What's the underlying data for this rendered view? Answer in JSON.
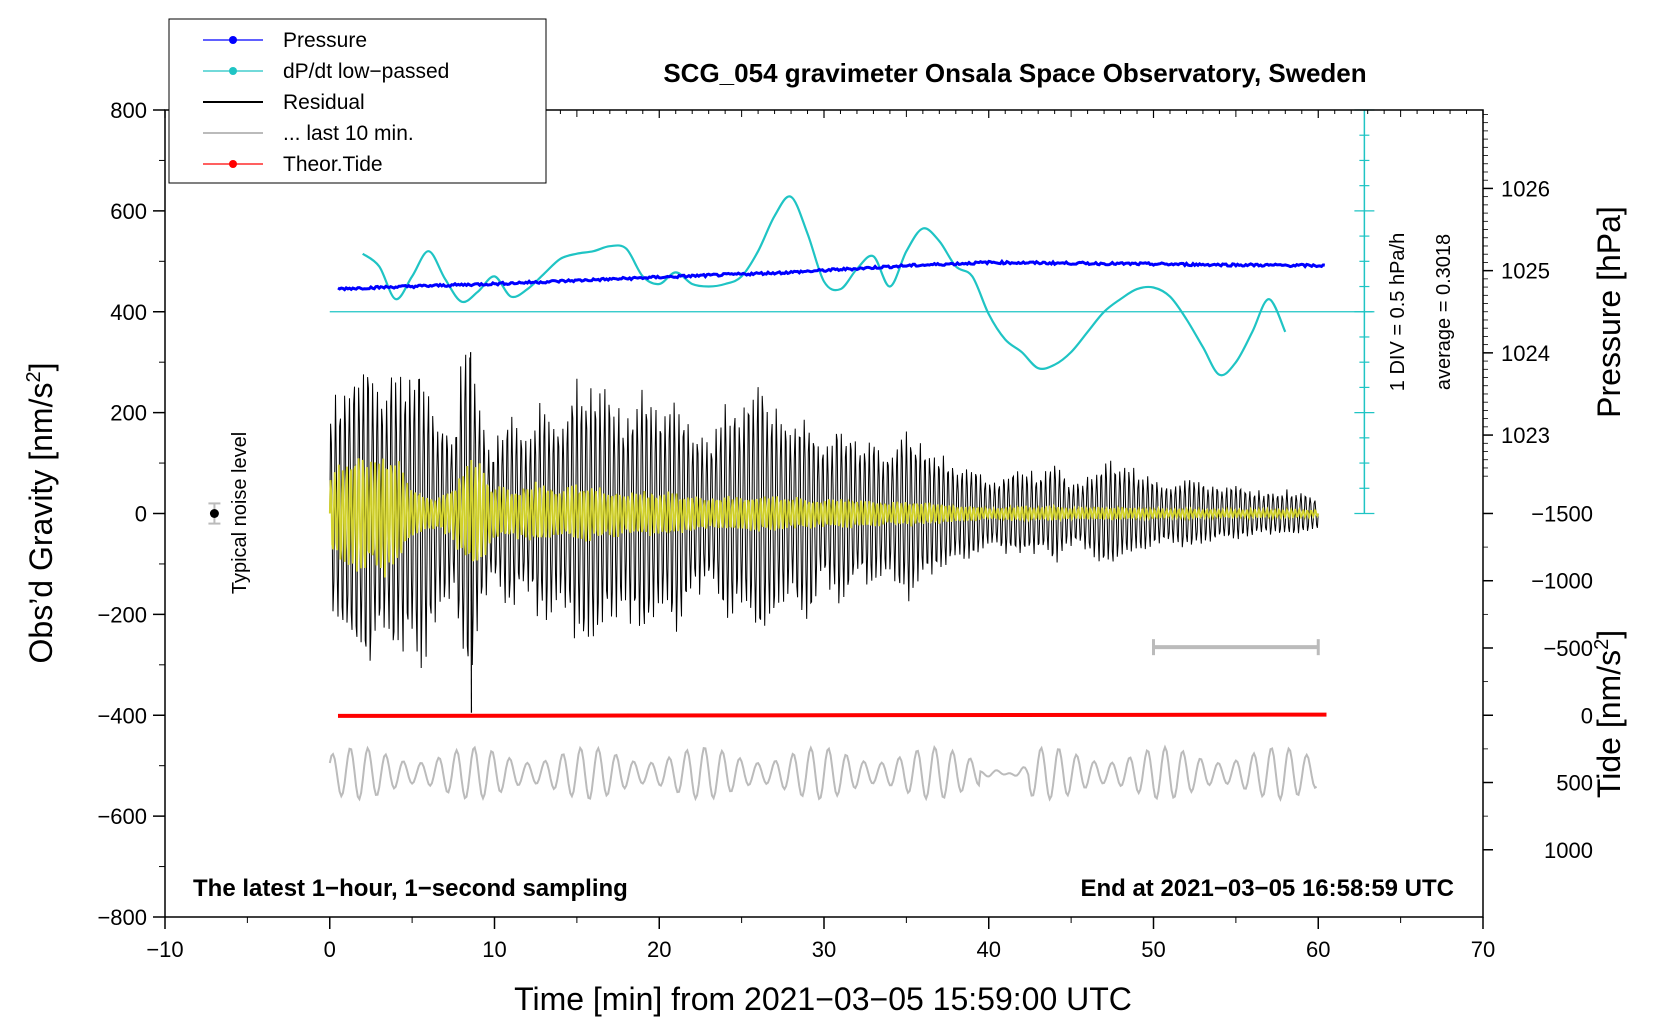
{
  "chart_data": {
    "type": "line",
    "title": "SCG_054 gravimeter Onsala Space Observatory, Sweden",
    "xlabel": "Time [min] from 2021−03−05 15:59:00 UTC",
    "ylabel_left_main": "Obs’d Gravity [nm/s",
    "ylabel_left_sup": "2",
    "ylabel_left_close": "]",
    "ylabel_right_pressure": "Pressure [hPa]",
    "ylabel_right_tide_main": "Tide [nm/s",
    "ylabel_right_tide_sup": "2",
    "ylabel_right_tide_close": "]",
    "xlim": [
      -10,
      70
    ],
    "ylim_left": [
      -800,
      800
    ],
    "x_ticks": [
      "−10",
      "0",
      "10",
      "20",
      "30",
      "40",
      "50",
      "60",
      "70"
    ],
    "y_left_ticks": [
      "800",
      "600",
      "400",
      "200",
      "0",
      "−200",
      "−400",
      "−600",
      "−800"
    ],
    "pressure_ticks": [
      "1026",
      "1025",
      "1024",
      "1023"
    ],
    "tide_ticks": [
      "1000",
      "500",
      "0",
      "−500",
      "−1000",
      "−1500"
    ],
    "legend": [
      {
        "label": "Pressure",
        "color": "#0000ff",
        "style": "line-dot"
      },
      {
        "label": "dP/dt low−passed",
        "color": "#1fc4c4",
        "style": "line-dot"
      },
      {
        "label": "Residual",
        "color": "#000000",
        "style": "line"
      },
      {
        "label": "... last 10 min.",
        "color": "#bbbbbb",
        "style": "line"
      },
      {
        "label": "Theor.Tide",
        "color": "#ff0000",
        "style": "line-dot"
      }
    ],
    "series": [
      {
        "name": "Pressure",
        "unit": "hPa",
        "x": [
          0.5,
          10,
          20,
          28,
          35,
          40,
          45,
          50,
          55,
          60.5
        ],
        "values": [
          1024.78,
          1024.84,
          1024.92,
          1024.98,
          1025.06,
          1025.1,
          1025.09,
          1025.08,
          1025.07,
          1025.06
        ]
      },
      {
        "name": "dP/dt low-passed",
        "unit": "gravity-scale",
        "x": [
          2,
          3,
          4,
          5,
          6,
          7,
          8,
          9,
          10,
          11,
          12,
          13,
          14,
          15,
          16,
          17,
          18,
          19,
          20,
          21,
          22,
          23,
          24,
          25,
          26,
          27,
          28,
          29,
          30,
          31,
          32,
          33,
          34,
          35,
          36,
          37,
          38,
          39,
          40,
          41,
          42,
          43,
          44,
          45,
          46,
          47,
          48,
          49,
          50,
          51,
          52,
          53,
          54,
          55,
          56,
          57,
          58
        ],
        "values": [
          515,
          490,
          425,
          470,
          520,
          465,
          420,
          440,
          470,
          430,
          445,
          475,
          505,
          515,
          520,
          530,
          525,
          470,
          455,
          478,
          455,
          450,
          455,
          470,
          520,
          590,
          628,
          555,
          460,
          445,
          485,
          510,
          450,
          520,
          565,
          540,
          490,
          470,
          395,
          345,
          320,
          288,
          295,
          320,
          360,
          400,
          425,
          445,
          448,
          430,
          385,
          330,
          275,
          300,
          360,
          425,
          360
        ]
      },
      {
        "name": "Residual",
        "unit": "nm/s2",
        "x_range": [
          0,
          60
        ],
        "peak_amplitude": 340,
        "min_value": -395
      },
      {
        "name": "... last 10 min.",
        "unit": "nm/s2",
        "x_range": [
          0,
          60
        ],
        "offset": -515,
        "amplitude": 45
      },
      {
        "name": "Theor.Tide",
        "unit": "nm/s2",
        "x": [
          0.5,
          60.5
        ],
        "values": [
          5,
          -5
        ]
      }
    ],
    "dpdt_zero_level": 400,
    "scale_bar_label": "1 DIV = 0.5 hPa/h",
    "average_label": "average = 0.3018",
    "noise_label": "Typical noise level",
    "noise_value": 0,
    "noise_error": 20,
    "note_left": "The latest 1−hour, 1−second sampling",
    "note_right": "End at 2021−03−05 16:58:59 UTC"
  }
}
